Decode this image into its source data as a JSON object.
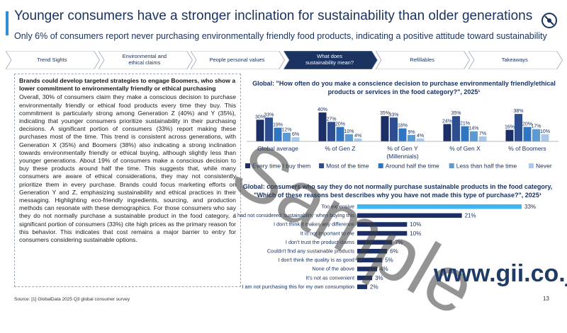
{
  "header": {
    "title": "Younger consumers have a stronger inclination for sustainability than older generations",
    "subtitle": "Only 6% of consumers report never purchasing environmentally friendly food products, indicating a positive attitude toward sustainability"
  },
  "nav": {
    "tabs": [
      {
        "label": "Trend Sights"
      },
      {
        "label": "Environmental and ethical claims"
      },
      {
        "label": "People personal values"
      },
      {
        "label": "What does sustainability mean?"
      },
      {
        "label": "Refillables"
      },
      {
        "label": "Takeaways"
      }
    ]
  },
  "left": {
    "heading": "Brands could develop targeted strategies to engage Boomers, who show a lower commitment to environmentally friendly or ethical purchasing",
    "body": "Overall, 30% of consumers claim they make a conscious decision to purchase environmentally friendly or ethical food products every time they buy. This commitment is particularly strong among Generation Z (40%) and Y (35%), indicating that younger consumers prioritize sustainability in their purchasing decisions. A significant portion of consumers (33%) report making these purchases most of the time. This trend is consistent across generations, with Generation X (35%) and Boomers (38%) also indicating a strong inclination towards environmentally friendly or ethical buying, although slightly less than younger generations. About 19% of consumers make a conscious decision to buy these products around half the time. This suggests that, while many consumers are aware of ethical considerations, they may not consistently prioritize them in every purchase. Brands could focus marketing efforts on Generation Y and Z, emphasizing sustainability and ethical practices in their messaging. Highlighting eco-friendly ingredients, sourcing, and production methods can resonate with these demographics. For those consumers who say they do not normally purchase a sustainable product in the food category, a significant portion of consumers (33%) cite high prices as the primary reason for this behavior. This indicates that cost remains a major barrier to entry for consumers considering sustainable options."
  },
  "chart_data": [
    {
      "type": "bar",
      "title": "Global: \"How often do you make a conscience decision to purchase environmentally friendly/ethical products or services in the food category?\", 2025¹",
      "categories": [
        "Global average",
        "% of Gen Z",
        "% of Gen Y (Millennials)",
        "% of Gen X",
        "% of Boomers"
      ],
      "series": [
        {
          "name": "Every time I buy them",
          "values": [
            30,
            40,
            35,
            24,
            16
          ]
        },
        {
          "name": "Most of the time",
          "values": [
            33,
            27,
            33,
            35,
            38
          ]
        },
        {
          "name": "Around half the time",
          "values": [
            19,
            20,
            18,
            21,
            20
          ]
        },
        {
          "name": "Less than half the time",
          "values": [
            12,
            10,
            9,
            14,
            17
          ]
        },
        {
          "name": "Never",
          "values": [
            6,
            4,
            4,
            7,
            10
          ]
        }
      ],
      "colors": [
        "#1b2f66",
        "#2d4d8f",
        "#2f75c0",
        "#5b9bd5",
        "#a9c8ea"
      ],
      "ylim": [
        0,
        45
      ],
      "legend": "bottom"
    },
    {
      "type": "bar",
      "orientation": "horizontal",
      "title": "Global: consumers who say they do not normally purchase sustainable products in the food category, \"Which of these reasons best describes why you have not made this type of purchase?\", 2025¹",
      "categories": [
        "Too expensive",
        "I had not considered 'sustainability' when buying this",
        "I don't think it makes any difference",
        "It is not important to me",
        "I don't trust the product claims",
        "Couldn't find any sustainable products",
        "I don't think the quality is as good",
        "None of the above",
        "It's not as convenient",
        "I am not purchasing this for my own consumption"
      ],
      "values": [
        33,
        21,
        10,
        10,
        7,
        6,
        5,
        4,
        3,
        2
      ],
      "value_labels": [
        "33%",
        "21%",
        "10%",
        "10%",
        "7%",
        "6%",
        "5%",
        "4%",
        "3%",
        "2%"
      ],
      "colors": {
        "highlight": "#3fb6f0",
        "default": "#1b2f66"
      },
      "xlim": [
        0,
        33
      ]
    }
  ],
  "footer": {
    "source": "Source: [1] GlobalData 2025 Q3 global consumer survey",
    "page": "13"
  },
  "watermark": {
    "text": "Sample",
    "url": "www.gii.co.jp"
  }
}
